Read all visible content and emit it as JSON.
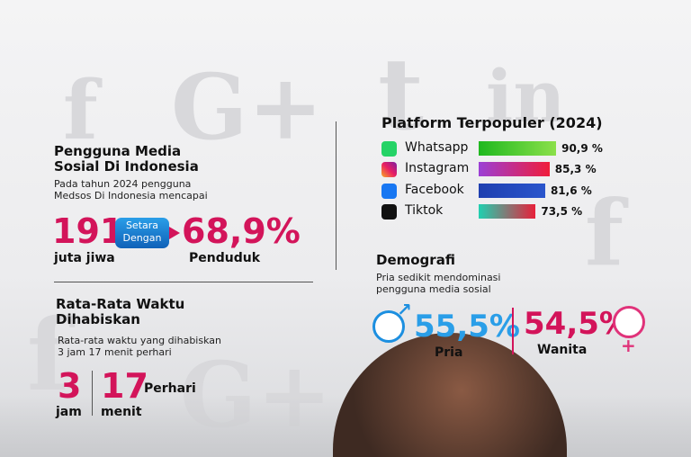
{
  "users": {
    "title_lines": [
      "Pengguna Media",
      "Sosial Di Indonesia"
    ],
    "text_lines": [
      "Pada tahun 2024 pengguna",
      "Medsos Di Indonesia mencapai"
    ],
    "count": "191",
    "count_unit": "juta jiwa",
    "badge_lines": [
      "Setara",
      "Dengan"
    ],
    "share": "68,9%",
    "share_unit": "Penduduk"
  },
  "time": {
    "title_lines": [
      "Rata-Rata Waktu",
      "Dihabiskan"
    ],
    "text_lines": [
      "Rata-rata waktu yang dihabiskan",
      "3 jam 17 menit perhari"
    ],
    "hours": "3",
    "hours_unit": "jam",
    "minutes": "17",
    "minutes_unit": "menit",
    "per": "Perhari"
  },
  "chart_data": {
    "type": "bar",
    "title": "Platform Terpopuler (2024)",
    "categories": [
      "Whatsapp",
      "Instagram",
      "Facebook",
      "Tiktok"
    ],
    "values": [
      90.9,
      85.3,
      81.6,
      73.5
    ],
    "value_labels": [
      "90,9 %",
      "85,3 %",
      "81,6 %",
      "73,5 %"
    ],
    "colors": [
      [
        "#1fb81f",
        "#8be04a"
      ],
      [
        "#9b3fd6",
        "#f01d3a"
      ],
      [
        "#1e3fb0",
        "#2a55cc"
      ],
      [
        "#20d0b0",
        "#e8203a"
      ]
    ],
    "xlim": [
      25,
      100
    ]
  },
  "demographics": {
    "title": "Demografi",
    "text_lines": [
      "Pria sedikit mendominasi",
      "pengguna media sosial"
    ],
    "male": "55,5%",
    "male_label": "Pria",
    "female": "54,5%",
    "female_label": "Wanita"
  }
}
